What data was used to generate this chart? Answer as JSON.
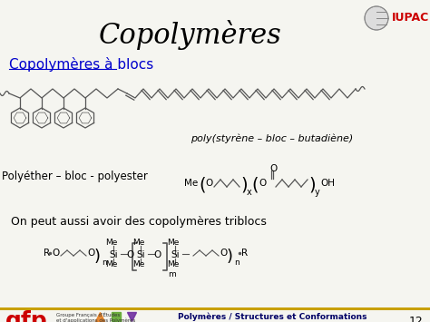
{
  "title": "Copolymères",
  "subtitle_link": "Copolymères à blocs",
  "poly_label": "poly(styrène – bloc – butadiène)",
  "polyether_label": "Polyéther – bloc - polyester",
  "tribloc_label": "On peut aussi avoir des copolymères triblocs",
  "iupac_label": "IUPAC",
  "footer_left": "gfp",
  "footer_right": "Polymères / Structures et Conformations",
  "slide_number": "12",
  "bg_color": "#f5f5f0",
  "title_color": "#000000",
  "link_color": "#0000cc",
  "text_color": "#000000",
  "footer_color": "#cc0000",
  "border_color": "#c8a000",
  "title_font_size": 22,
  "link_font_size": 11,
  "body_font_size": 10,
  "footer_font_size": 9,
  "phenyl_color": "#555555",
  "chain_color": "#555555"
}
